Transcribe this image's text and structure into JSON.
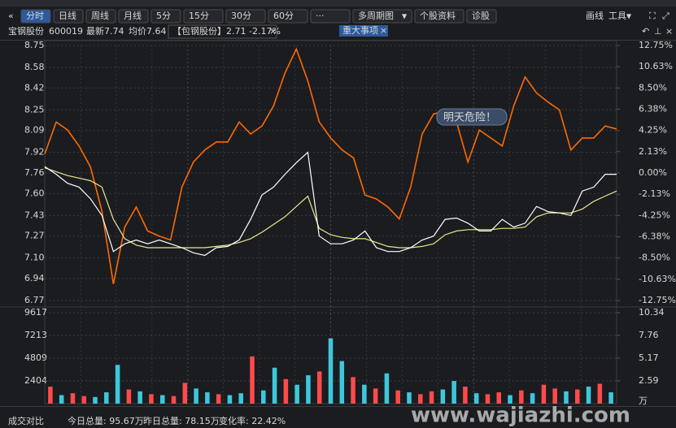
{
  "toolbar": {
    "tabs": [
      "分时",
      "日线",
      "周线",
      "月线",
      "5分",
      "15分",
      "30分",
      "60分",
      "···",
      "多周期图",
      "个股资料",
      "诊股"
    ],
    "right": [
      "画线",
      "工具"
    ]
  },
  "info_bar": {
    "name": "宝钢股份",
    "code": "600019",
    "latest": "最新7.74",
    "avg": "均价7.64",
    "compare": "【包钢股份】2.71 -2.17%",
    "events": "重大事项"
  },
  "chart_data": [
    {
      "type": "line",
      "annotation": "明天危险！",
      "ylim": [
        6.77,
        8.75
      ],
      "yticks": [
        6.77,
        6.94,
        {
          "value": 7.1,
          "label": "7.10"
        },
        7.27,
        7.43,
        {
          "value": 7.6,
          "label": "7.60"
        },
        7.76,
        7.92,
        8.09,
        8.25,
        8.42,
        8.58,
        8.75
      ],
      "y2lim": [
        -12.75,
        12.75
      ],
      "y2ticks": [
        {
          "value": -12.75,
          "label": "-12.75%"
        },
        {
          "value": -10.63,
          "label": "-10.63%"
        },
        {
          "value": -8.5,
          "label": "-8.50%"
        },
        {
          "value": -6.38,
          "label": "-6.38%"
        },
        {
          "value": -4.25,
          "label": "-4.25%"
        },
        {
          "value": -2.13,
          "label": "-2.13%"
        },
        {
          "value": 0,
          "label": "0.00%"
        },
        {
          "value": 2.13,
          "label": "2.13%"
        },
        {
          "value": 4.25,
          "label": "4.25%"
        },
        {
          "value": 6.38,
          "label": "6.38%"
        },
        {
          "value": 8.5,
          "label": "8.50%"
        },
        {
          "value": 10.63,
          "label": "10.63%"
        },
        {
          "value": 12.75,
          "label": "12.75%"
        }
      ],
      "grid": true,
      "series": [
        {
          "color": "#ff6a00",
          "axis": "y2",
          "values": [
            1.9,
            5.1,
            4.3,
            2.7,
            0.6,
            -3.8,
            -11.1,
            -5.4,
            -3.4,
            -5.8,
            -6.3,
            -6.7,
            -1.4,
            1.1,
            2.3,
            3.1,
            3.1,
            5.1,
            3.9,
            4.7,
            6.7,
            10.0,
            12.4,
            9.2,
            5.1,
            3.5,
            2.3,
            1.5,
            -2.2,
            -2.6,
            -3.4,
            -4.6,
            -1.4,
            3.9,
            5.9,
            6.2,
            5.1,
            1.1,
            4.3,
            3.5,
            2.7,
            6.7,
            9.6,
            8.0,
            7.1,
            6.3,
            2.3,
            3.5,
            3.5,
            4.7,
            4.4
          ]
        },
        {
          "color": "#e8e88c",
          "values": [
            7.8,
            7.77,
            7.74,
            7.72,
            7.7,
            7.65,
            7.4,
            7.25,
            7.2,
            7.18,
            7.18,
            7.18,
            7.18,
            7.18,
            7.18,
            7.19,
            7.2,
            7.22,
            7.25,
            7.3,
            7.36,
            7.42,
            7.5,
            7.58,
            7.33,
            7.28,
            7.26,
            7.25,
            7.25,
            7.22,
            7.19,
            7.18,
            7.18,
            7.19,
            7.21,
            7.28,
            7.31,
            7.32,
            7.32,
            7.32,
            7.33,
            7.33,
            7.34,
            7.42,
            7.45,
            7.45,
            7.45,
            7.48,
            7.54,
            7.58,
            7.62
          ]
        },
        {
          "color": "#ffffff",
          "values": [
            7.81,
            7.75,
            7.68,
            7.65,
            7.56,
            7.43,
            7.15,
            7.21,
            7.24,
            7.21,
            7.24,
            7.21,
            7.18,
            7.14,
            7.12,
            7.18,
            7.19,
            7.24,
            7.4,
            7.59,
            7.65,
            7.75,
            7.84,
            7.92,
            7.27,
            7.21,
            7.21,
            7.24,
            7.31,
            7.18,
            7.15,
            7.15,
            7.18,
            7.24,
            7.27,
            7.4,
            7.41,
            7.37,
            7.31,
            7.31,
            7.4,
            7.34,
            7.37,
            7.5,
            7.46,
            7.45,
            7.43,
            7.62,
            7.65,
            7.75,
            7.75
          ]
        }
      ]
    },
    {
      "type": "bar",
      "ylim": [
        0,
        9617
      ],
      "yticks": [
        2404,
        4809,
        7213,
        9617
      ],
      "y2lim": [
        0,
        10.34
      ],
      "y2ticks": [
        2.59,
        5.17,
        7.76,
        10.34
      ],
      "y2_unit": "万",
      "grid": true,
      "values": [
        1800,
        900,
        1100,
        800,
        700,
        1200,
        4100,
        1500,
        1300,
        1000,
        900,
        800,
        2200,
        1600,
        1200,
        1000,
        900,
        1100,
        5000,
        1400,
        3800,
        2600,
        2000,
        3000,
        3400,
        6900,
        4500,
        2800,
        2000,
        1600,
        3200,
        1400,
        1200,
        1000,
        1300,
        1500,
        2400,
        1800,
        1100,
        1000,
        1200,
        900,
        1400,
        1100,
        2000,
        1600,
        1300,
        1500,
        1800,
        2100,
        1200
      ],
      "colors": [
        "#ff4a4a",
        "#3cc8dc",
        "#ff4a4a",
        "#ff4a4a",
        "#3cc8dc",
        "#3cc8dc",
        "#3cc8dc",
        "#ff4a4a",
        "#3cc8dc",
        "#ff4a4a",
        "#3cc8dc",
        "#ff4a4a",
        "#ff4a4a",
        "#3cc8dc",
        "#3cc8dc",
        "#ff4a4a",
        "#3cc8dc",
        "#3cc8dc",
        "#ff4a4a",
        "#3cc8dc",
        "#3cc8dc",
        "#ff4a4a",
        "#3cc8dc",
        "#3cc8dc",
        "#ff4a4a",
        "#3cc8dc",
        "#3cc8dc",
        "#ff4a4a",
        "#3cc8dc",
        "#ff4a4a",
        "#3cc8dc",
        "#ff4a4a",
        "#3cc8dc",
        "#ff4a4a",
        "#ff4a4a",
        "#3cc8dc",
        "#3cc8dc",
        "#ff4a4a",
        "#3cc8dc",
        "#ff4a4a",
        "#ff4a4a",
        "#3cc8dc",
        "#ff4a4a",
        "#3cc8dc",
        "#ff4a4a",
        "#ff4a4a",
        "#3cc8dc",
        "#ff4a4a",
        "#3cc8dc",
        "#ff4a4a",
        "#3cc8dc"
      ]
    }
  ],
  "footer": {
    "compare": "成交对比",
    "today": "今日总量: 95.67万",
    "yesterday": "昨日总量: 78.15万",
    "change": "变化率: 22.42%"
  },
  "watermark": "www.wajiazhi.com"
}
